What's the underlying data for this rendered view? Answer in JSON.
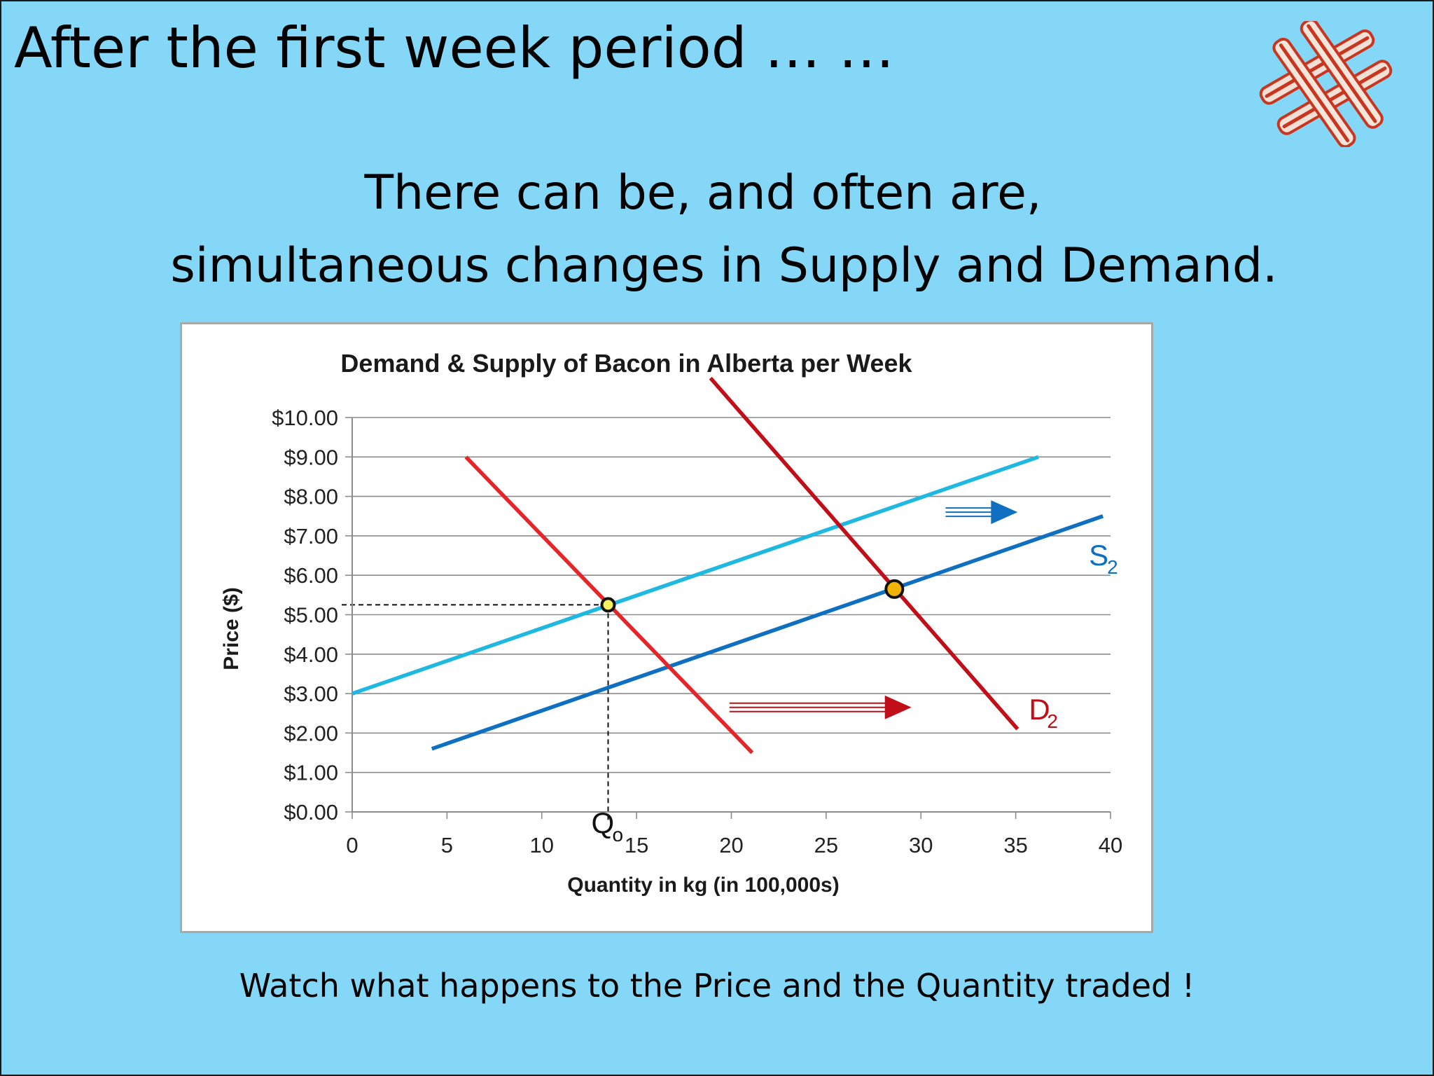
{
  "slide": {
    "title": "After the first week period … …",
    "subtitle_line1": "There can be, and often are,",
    "subtitle_line2": "simultaneous changes in Supply and Demand.",
    "footer": "Watch what happens to the Price and the Quantity traded !"
  },
  "logo": {
    "icon": "bacon-icon"
  },
  "chart_data": {
    "type": "line",
    "title": "Demand & Supply of Bacon in Alberta per Week",
    "xlabel": "Quantity in kg (in 100,000s)",
    "ylabel": "Price ($)",
    "xlim": [
      0,
      40
    ],
    "ylim": [
      0,
      10
    ],
    "x_ticks": [
      "0",
      "5",
      "10",
      "15",
      "20",
      "25",
      "30",
      "35",
      "40"
    ],
    "y_ticks": [
      "$0.00",
      "$1.00",
      "$2.00",
      "$3.00",
      "$4.00",
      "$5.00",
      "$6.00",
      "$7.00",
      "$8.00",
      "$9.00",
      "$10.00"
    ],
    "grid": true,
    "series": [
      {
        "key": "supply1",
        "name": "",
        "color": "#1fb8e0",
        "points": [
          [
            0,
            3.0
          ],
          [
            36.2,
            9.0
          ]
        ]
      },
      {
        "key": "supply2",
        "name": "S",
        "subscript": "2",
        "color": "#0f6fc0",
        "points": [
          [
            4.2,
            1.6
          ],
          [
            39.6,
            7.5
          ]
        ]
      },
      {
        "key": "demand1",
        "name": "",
        "color": "#e4262b",
        "points": [
          [
            6.0,
            9.0
          ],
          [
            21.1,
            1.5
          ]
        ]
      },
      {
        "key": "demand2",
        "name": "D",
        "subscript": "2",
        "color": "#c00f18",
        "points": [
          [
            18.9,
            11.0
          ],
          [
            35.1,
            2.1
          ]
        ]
      }
    ],
    "equilibria": [
      {
        "x": 13.5,
        "y": 5.25,
        "fill": "#f5f060"
      },
      {
        "x": 28.6,
        "y": 5.65,
        "fill": "#f0b400"
      }
    ],
    "reference_lines": {
      "x": 13.5,
      "y": 5.25,
      "label": "Q",
      "label_sub": "o"
    },
    "shift_arrows": [
      {
        "key": "supply-shift",
        "color": "#0f6fc0",
        "from": [
          31.3,
          7.6
        ],
        "to": [
          35.1,
          7.6
        ]
      },
      {
        "key": "demand-shift",
        "color": "#c00f18",
        "from": [
          19.9,
          2.65
        ],
        "to": [
          29.5,
          2.65
        ]
      }
    ]
  }
}
